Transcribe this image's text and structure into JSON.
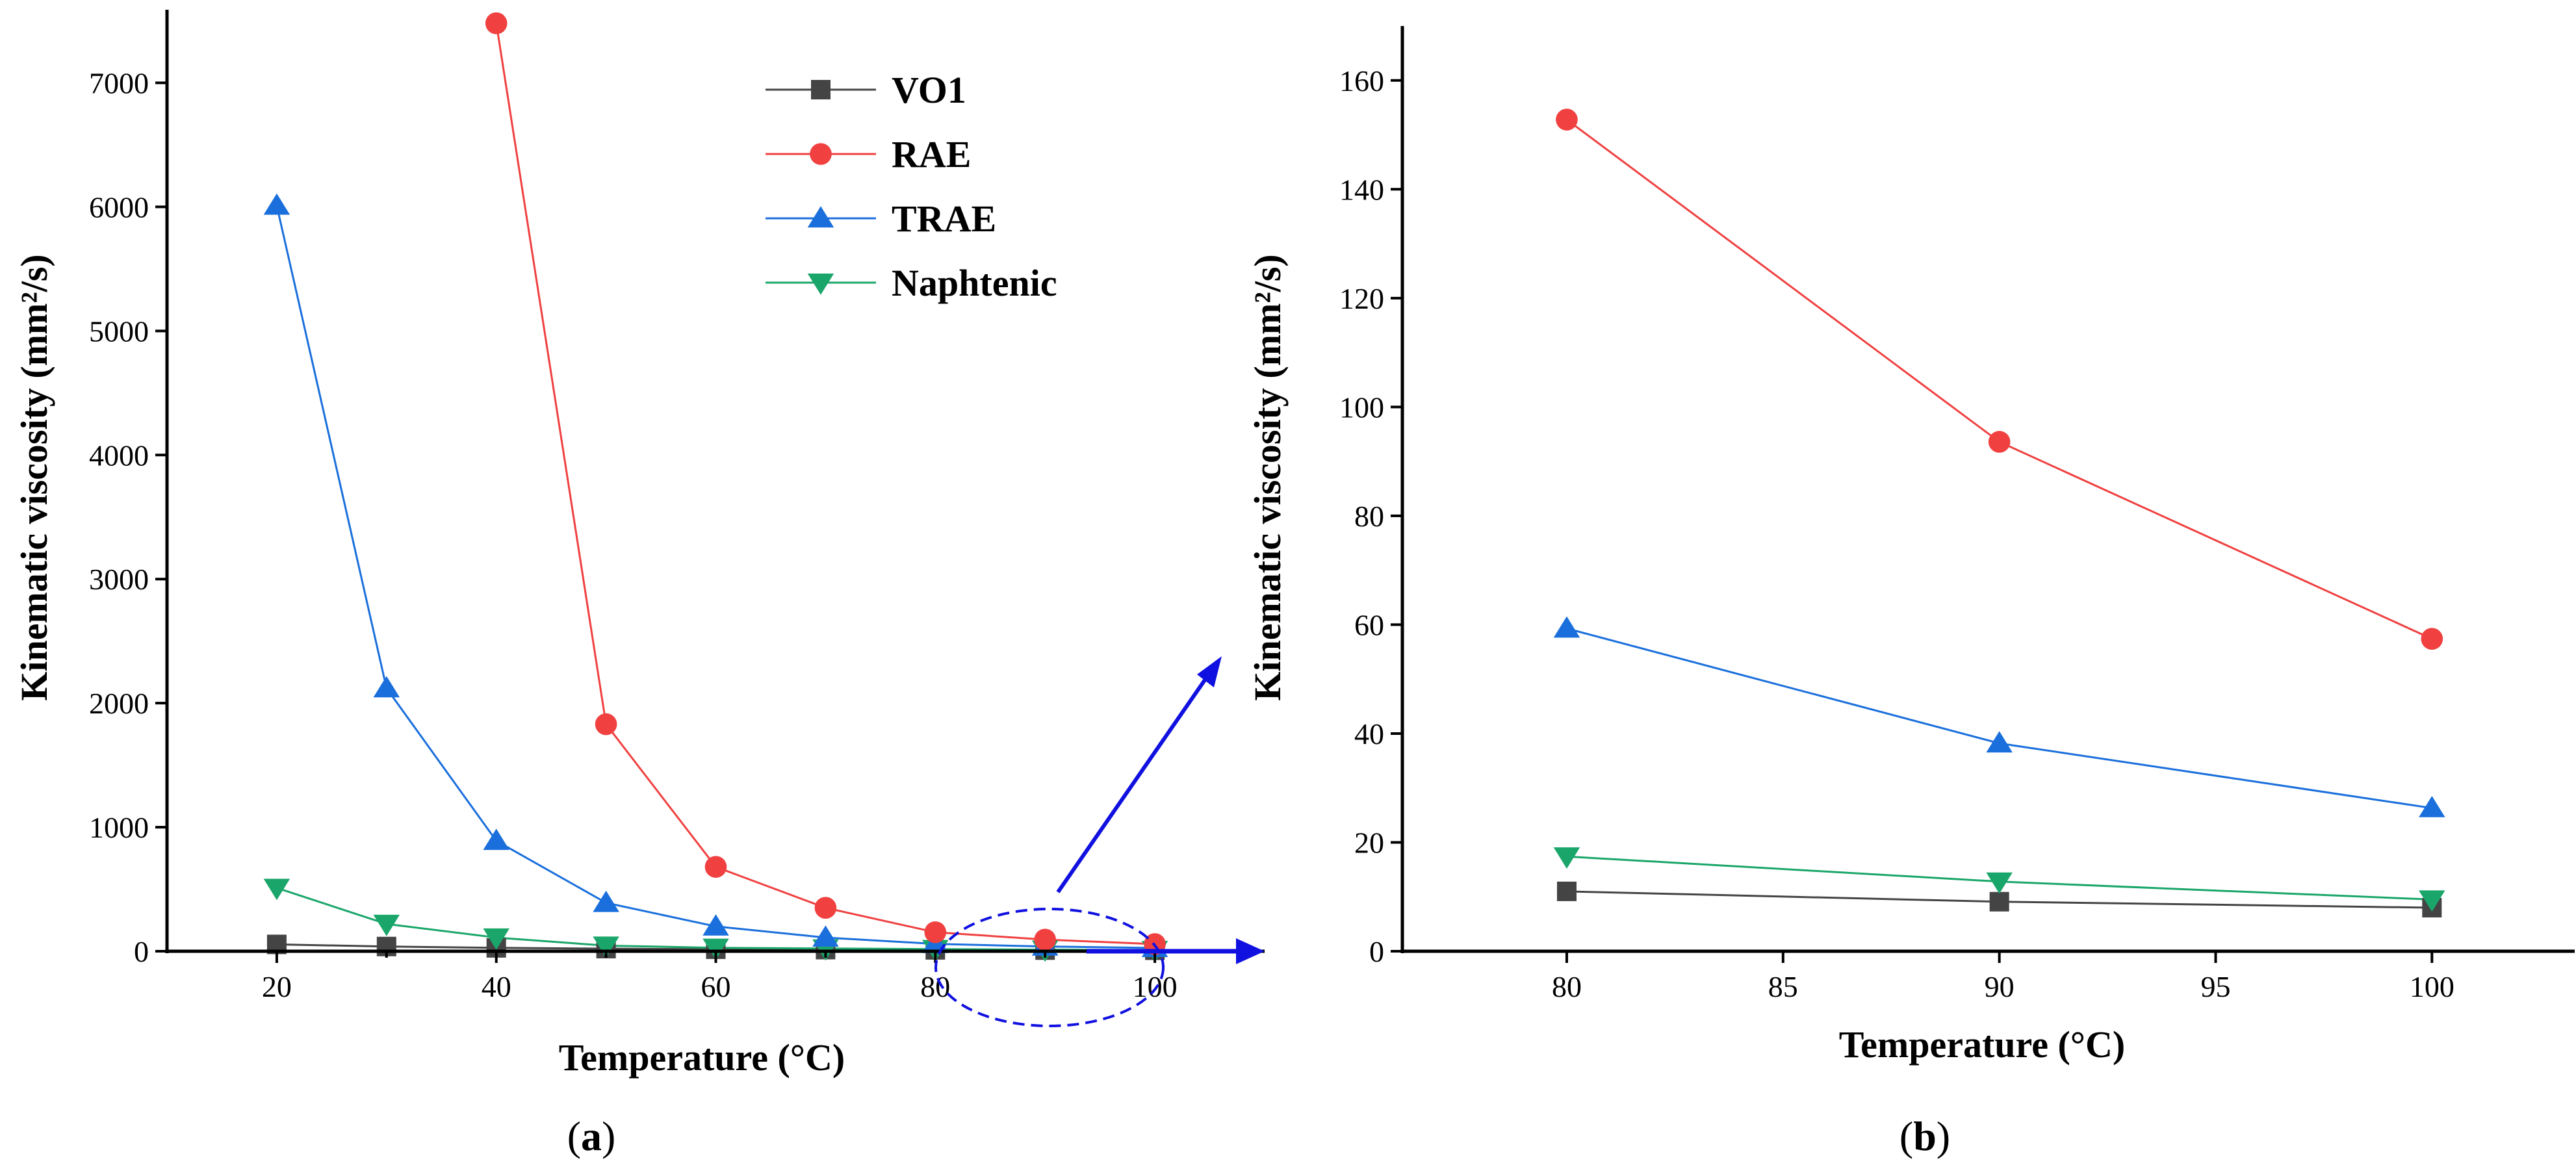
{
  "chart_data": [
    {
      "id": "a",
      "type": "line",
      "caption_letter": "a",
      "xlabel": "Temperature (°C)",
      "ylabel": "Kinematic viscosity (mm²/s)",
      "xlim": [
        10,
        110
      ],
      "ylim": [
        0,
        7500
      ],
      "x_ticks": [
        20,
        30,
        40,
        50,
        60,
        70,
        80,
        90,
        100
      ],
      "x_tick_labels": [
        "20",
        "40",
        "60",
        "80",
        "100"
      ],
      "y_ticks": [
        0,
        1000,
        2000,
        3000,
        4000,
        5000,
        6000,
        7000
      ],
      "legend_position": "top-center",
      "series": [
        {
          "name": "VO1",
          "color": "#444444",
          "marker": "square",
          "x": [
            20,
            30,
            40,
            50,
            60,
            70,
            80,
            90,
            100
          ],
          "values": [
            55,
            38,
            27,
            21,
            16,
            13,
            11,
            9.1,
            8
          ]
        },
        {
          "name": "RAE",
          "color": "#f04040",
          "marker": "circle",
          "x": [
            40,
            50,
            60,
            70,
            80,
            90,
            100
          ],
          "values": [
            7480,
            1830,
            680,
            350,
            153,
            93.6,
            57.4
          ]
        },
        {
          "name": "TRAE",
          "color": "#1a6fdc",
          "marker": "triangle-up",
          "x": [
            20,
            30,
            40,
            50,
            60,
            70,
            80,
            90,
            100
          ],
          "values": [
            6010,
            2120,
            890,
            390,
            200,
            110,
            59.3,
            38.2,
            26.3
          ]
        },
        {
          "name": "Naphtenic",
          "color": "#1aa66a",
          "marker": "triangle-down",
          "x": [
            20,
            30,
            40,
            50,
            60,
            70,
            80,
            90,
            100
          ],
          "values": [
            510,
            220,
            110,
            45,
            28,
            22,
            17.4,
            12.8,
            9.5
          ]
        }
      ]
    },
    {
      "id": "b",
      "type": "line",
      "caption_letter": "b",
      "xlabel": "Temperature (°C)",
      "ylabel": "Kinematic viscosity (mm²/s)",
      "xlim": [
        76.2,
        103.3
      ],
      "ylim": [
        0,
        170
      ],
      "x_ticks": [
        80,
        85,
        90,
        95,
        100
      ],
      "x_tick_labels": [
        "80",
        "85",
        "90",
        "95",
        "100"
      ],
      "y_ticks": [
        0,
        20,
        40,
        60,
        80,
        100,
        120,
        140,
        160
      ],
      "series": [
        {
          "name": "VO1",
          "color": "#444444",
          "marker": "square",
          "x": [
            80,
            90,
            100
          ],
          "values": [
            11,
            9.1,
            8
          ]
        },
        {
          "name": "RAE",
          "color": "#f04040",
          "marker": "circle",
          "x": [
            80,
            90,
            100
          ],
          "values": [
            152.8,
            93.6,
            57.4
          ]
        },
        {
          "name": "TRAE",
          "color": "#1a6fdc",
          "marker": "triangle-up",
          "x": [
            80,
            90,
            100
          ],
          "values": [
            59.3,
            38.2,
            26.3
          ]
        },
        {
          "name": "Naphtenic",
          "color": "#1aa66a",
          "marker": "triangle-down",
          "x": [
            80,
            90,
            100
          ],
          "values": [
            17.4,
            12.8,
            9.5
          ]
        }
      ]
    }
  ],
  "zoom_arrow_color": "#1010e0"
}
